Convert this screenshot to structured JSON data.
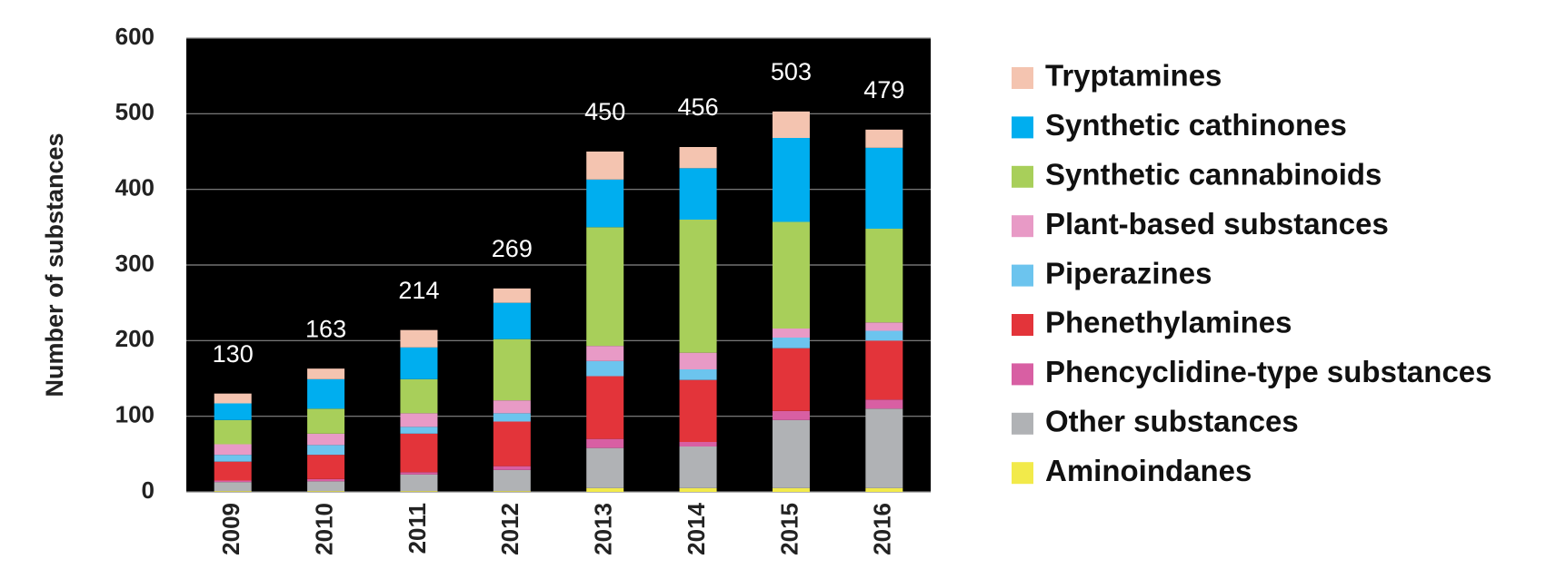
{
  "chart_data": {
    "type": "stacked_bar",
    "y_label": "Number of substances",
    "categories": [
      "2009",
      "2010",
      "2011",
      "2012",
      "2013",
      "2014",
      "2015",
      "2016"
    ],
    "totals": [
      130,
      163,
      214,
      269,
      450,
      456,
      503,
      479
    ],
    "series": [
      {
        "name": "Tryptamines",
        "color": "#f4c4b0",
        "values": [
          13,
          14,
          23,
          19,
          37,
          28,
          35,
          24
        ]
      },
      {
        "name": "Synthetic cathinones",
        "color": "#00aeef",
        "values": [
          22,
          39,
          42,
          48,
          63,
          68,
          111,
          107
        ]
      },
      {
        "name": "Synthetic cannabinoids",
        "color": "#a8cf5a",
        "values": [
          32,
          33,
          45,
          81,
          157,
          176,
          141,
          124
        ]
      },
      {
        "name": "Plant-based substances",
        "color": "#e89ac6",
        "values": [
          14,
          15,
          18,
          17,
          20,
          22,
          12,
          11
        ]
      },
      {
        "name": "Piperazines",
        "color": "#6cc4ee",
        "values": [
          9,
          13,
          9,
          11,
          20,
          14,
          14,
          13
        ]
      },
      {
        "name": "Phenethylamines",
        "color": "#e3343a",
        "values": [
          25,
          32,
          51,
          59,
          83,
          82,
          83,
          78
        ]
      },
      {
        "name": "Phencyclidine-type substances",
        "color": "#d85fa3",
        "values": [
          2,
          3,
          3,
          5,
          12,
          6,
          12,
          12
        ]
      },
      {
        "name": "Other substances",
        "color": "#b0b2b5",
        "values": [
          12,
          13,
          22,
          28,
          53,
          55,
          90,
          105
        ]
      },
      {
        "name": "Aminoindanes",
        "color": "#f2ea4a",
        "values": [
          1,
          1,
          1,
          1,
          5,
          5,
          5,
          5
        ]
      }
    ],
    "ylim": [
      0,
      600
    ],
    "yticks": [
      0,
      100,
      200,
      300,
      400,
      500,
      600
    ],
    "grid": true
  }
}
